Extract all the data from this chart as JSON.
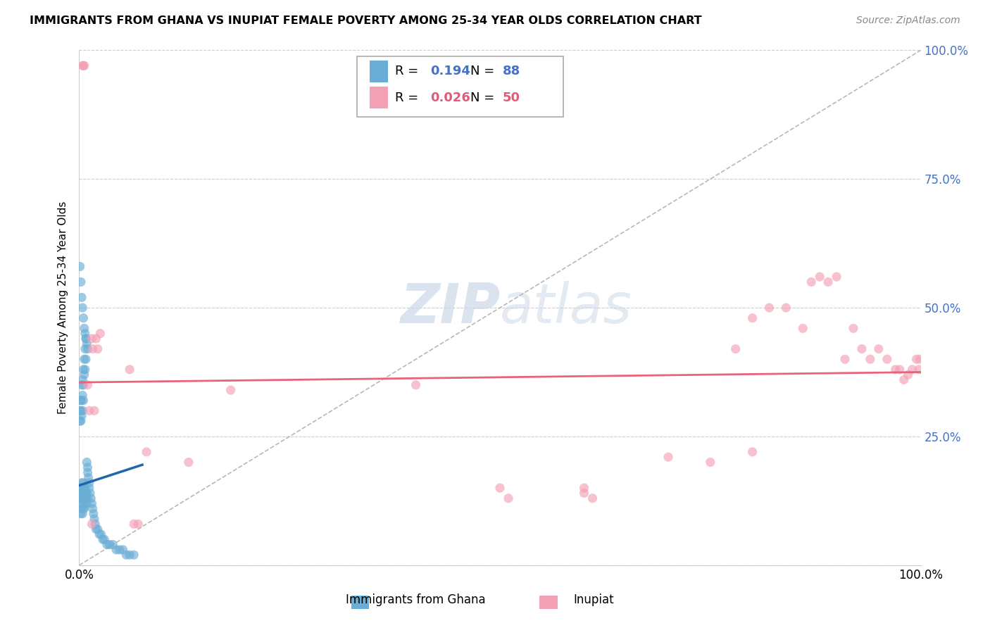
{
  "title": "IMMIGRANTS FROM GHANA VS INUPIAT FEMALE POVERTY AMONG 25-34 YEAR OLDS CORRELATION CHART",
  "source": "Source: ZipAtlas.com",
  "ylabel": "Female Poverty Among 25-34 Year Olds",
  "xlim": [
    0,
    1
  ],
  "ylim": [
    0,
    1
  ],
  "legend_blue_r": "0.194",
  "legend_blue_n": "88",
  "legend_pink_r": "0.026",
  "legend_pink_n": "50",
  "blue_color": "#6aaed6",
  "pink_color": "#f4a0b5",
  "blue_line_color": "#2166ac",
  "pink_line_color": "#e8637a",
  "diag_line_color": "#b0b0b0",
  "watermark_color": "#ccd9e8",
  "blue_scatter_x": [
    0.001,
    0.002,
    0.002,
    0.002,
    0.002,
    0.003,
    0.003,
    0.003,
    0.003,
    0.004,
    0.004,
    0.004,
    0.004,
    0.005,
    0.005,
    0.005,
    0.005,
    0.005,
    0.006,
    0.006,
    0.006,
    0.006,
    0.007,
    0.007,
    0.007,
    0.008,
    0.008,
    0.009,
    0.009,
    0.01,
    0.001,
    0.001,
    0.002,
    0.002,
    0.002,
    0.003,
    0.003,
    0.003,
    0.004,
    0.004,
    0.004,
    0.005,
    0.005,
    0.005,
    0.006,
    0.006,
    0.007,
    0.007,
    0.008,
    0.008,
    0.009,
    0.01,
    0.01,
    0.011,
    0.012,
    0.012,
    0.013,
    0.014,
    0.015,
    0.016,
    0.017,
    0.018,
    0.019,
    0.02,
    0.022,
    0.024,
    0.026,
    0.028,
    0.03,
    0.033,
    0.036,
    0.04,
    0.044,
    0.048,
    0.052,
    0.056,
    0.06,
    0.065,
    0.001,
    0.002,
    0.003,
    0.004,
    0.005,
    0.006,
    0.007,
    0.008,
    0.009,
    0.01
  ],
  "blue_scatter_y": [
    0.15,
    0.14,
    0.13,
    0.12,
    0.1,
    0.16,
    0.14,
    0.13,
    0.11,
    0.15,
    0.14,
    0.12,
    0.1,
    0.16,
    0.15,
    0.14,
    0.13,
    0.11,
    0.15,
    0.14,
    0.13,
    0.11,
    0.15,
    0.14,
    0.12,
    0.14,
    0.13,
    0.14,
    0.12,
    0.13,
    0.3,
    0.28,
    0.32,
    0.3,
    0.28,
    0.35,
    0.32,
    0.29,
    0.36,
    0.33,
    0.3,
    0.38,
    0.35,
    0.32,
    0.4,
    0.37,
    0.42,
    0.38,
    0.44,
    0.4,
    0.2,
    0.19,
    0.18,
    0.17,
    0.16,
    0.15,
    0.14,
    0.13,
    0.12,
    0.11,
    0.1,
    0.09,
    0.08,
    0.07,
    0.07,
    0.06,
    0.06,
    0.05,
    0.05,
    0.04,
    0.04,
    0.04,
    0.03,
    0.03,
    0.03,
    0.02,
    0.02,
    0.02,
    0.58,
    0.55,
    0.52,
    0.5,
    0.48,
    0.46,
    0.45,
    0.44,
    0.43,
    0.42
  ],
  "pink_scatter_x": [
    0.004,
    0.005,
    0.006,
    0.015,
    0.016,
    0.02,
    0.022,
    0.025,
    0.06,
    0.065,
    0.18,
    0.5,
    0.51,
    0.6,
    0.61,
    0.7,
    0.75,
    0.78,
    0.8,
    0.82,
    0.84,
    0.86,
    0.87,
    0.88,
    0.89,
    0.9,
    0.91,
    0.92,
    0.93,
    0.94,
    0.95,
    0.96,
    0.97,
    0.975,
    0.98,
    0.985,
    0.99,
    0.995,
    0.998,
    0.999,
    0.01,
    0.012,
    0.015,
    0.018,
    0.07,
    0.08,
    0.13,
    0.4,
    0.6,
    0.8
  ],
  "pink_scatter_y": [
    0.97,
    0.97,
    0.97,
    0.44,
    0.42,
    0.44,
    0.42,
    0.45,
    0.38,
    0.08,
    0.34,
    0.15,
    0.13,
    0.15,
    0.13,
    0.21,
    0.2,
    0.42,
    0.48,
    0.5,
    0.5,
    0.46,
    0.55,
    0.56,
    0.55,
    0.56,
    0.4,
    0.46,
    0.42,
    0.4,
    0.42,
    0.4,
    0.38,
    0.38,
    0.36,
    0.37,
    0.38,
    0.4,
    0.38,
    0.4,
    0.35,
    0.3,
    0.08,
    0.3,
    0.08,
    0.22,
    0.2,
    0.35,
    0.14,
    0.22
  ],
  "blue_line_x0": 0.0,
  "blue_line_x1": 0.075,
  "blue_line_y0": 0.155,
  "blue_line_y1": 0.195,
  "pink_line_y0": 0.355,
  "pink_line_y1": 0.375,
  "grid_yticks": [
    0.25,
    0.5,
    0.75,
    1.0
  ],
  "right_ytick_labels": [
    "25.0%",
    "50.0%",
    "75.0%",
    "100.0%"
  ],
  "right_ytick_color": "#4472c4"
}
